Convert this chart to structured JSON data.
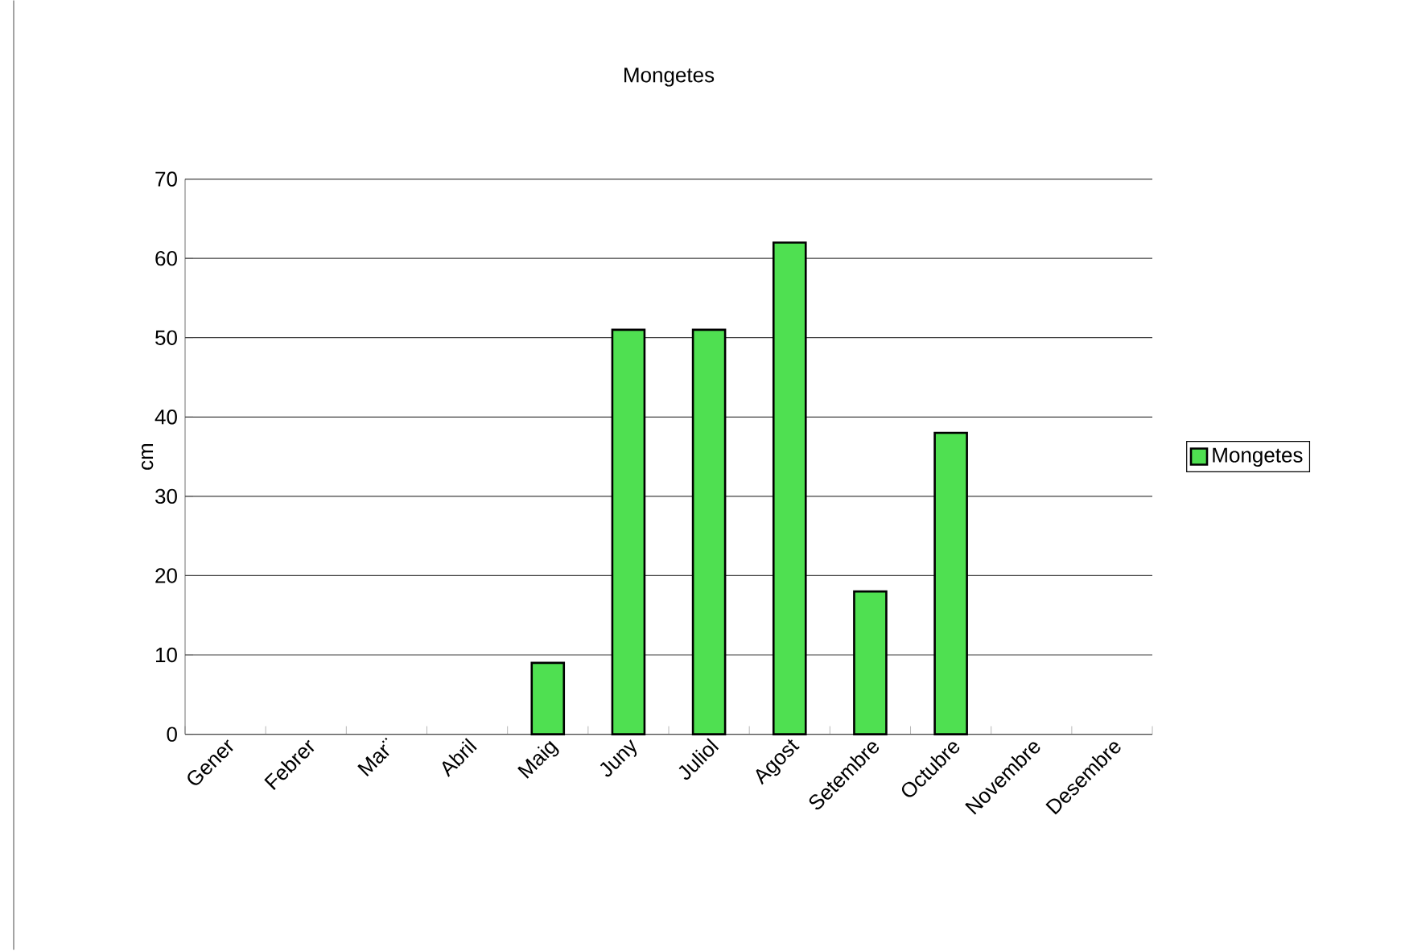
{
  "chart_data": {
    "type": "bar",
    "title": "Mongetes",
    "ylabel": "cm",
    "categories": [
      "Gener",
      "Febrer",
      "Mar¨",
      "Abril",
      "Maig",
      "Juny",
      "Juliol",
      "Agost",
      "Setembre",
      "Octubre",
      "Novembre",
      "Desembre"
    ],
    "series": [
      {
        "name": "Mongetes",
        "color": "#4fe051",
        "values": [
          null,
          null,
          null,
          null,
          9,
          51,
          51,
          62,
          18,
          38,
          null,
          null
        ]
      }
    ],
    "ylim": [
      0,
      70
    ],
    "yticks": [
      0,
      10,
      20,
      30,
      40,
      50,
      60,
      70
    ],
    "grid": "y",
    "legend": "right"
  }
}
